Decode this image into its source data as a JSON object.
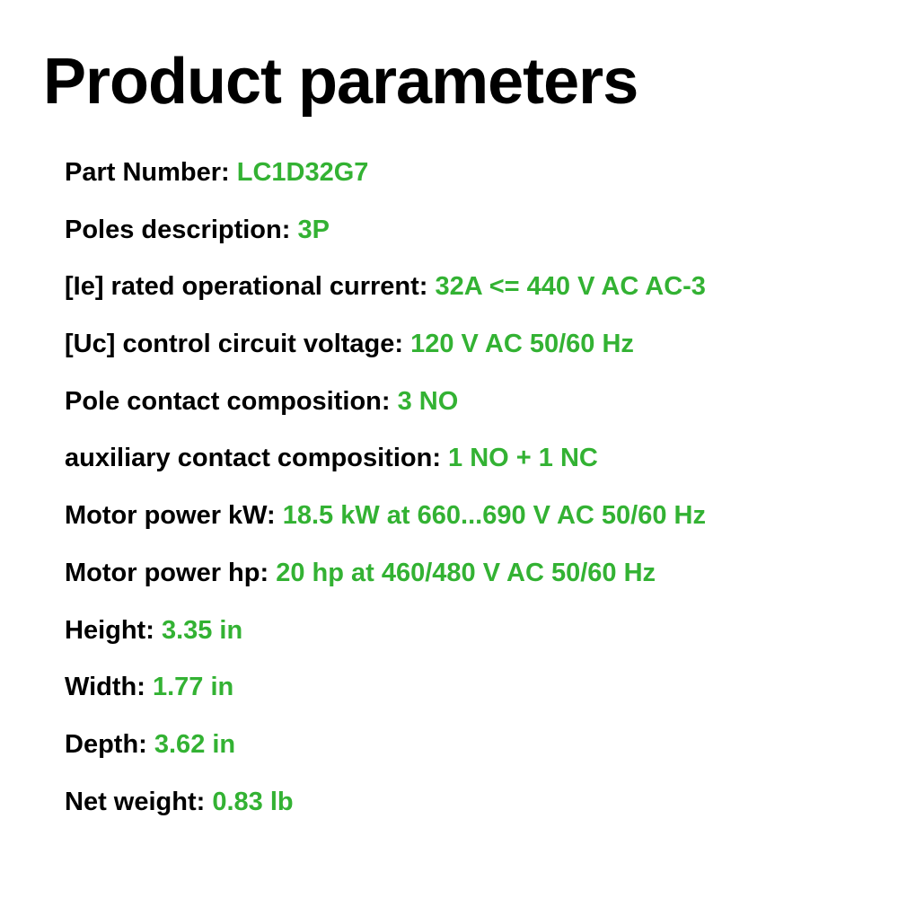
{
  "title": "Product parameters",
  "colors": {
    "text_black": "#000000",
    "text_green": "#33b233",
    "background": "#ffffff"
  },
  "typography": {
    "title_fontsize": 72,
    "title_weight": 700,
    "param_fontsize": 29,
    "param_weight": 700
  },
  "parameters": [
    {
      "label": "Part Number: ",
      "value": "LC1D32G7"
    },
    {
      "label": "Poles description: ",
      "value": "3P"
    },
    {
      "label": "[Ie] rated operational current: ",
      "value": "32A <= 440 V AC AC-3"
    },
    {
      "label": "[Uc] control circuit voltage: ",
      "value": "120 V AC 50/60 Hz"
    },
    {
      "label": "Pole contact composition: ",
      "value": "3 NO"
    },
    {
      "label": "auxiliary contact composition: ",
      "value": "1 NO + 1 NC"
    },
    {
      "label": "Motor power kW: ",
      "value": "18.5 kW at 660...690 V AC 50/60 Hz"
    },
    {
      "label": "Motor power hp: ",
      "value": "20 hp at 460/480 V AC 50/60 Hz"
    },
    {
      "label": "Height: ",
      "value": "3.35 in"
    },
    {
      "label": "Width: ",
      "value": "1.77 in"
    },
    {
      "label": "Depth: ",
      "value": "3.62 in"
    },
    {
      "label": "Net weight: ",
      "value": "0.83 lb"
    }
  ]
}
